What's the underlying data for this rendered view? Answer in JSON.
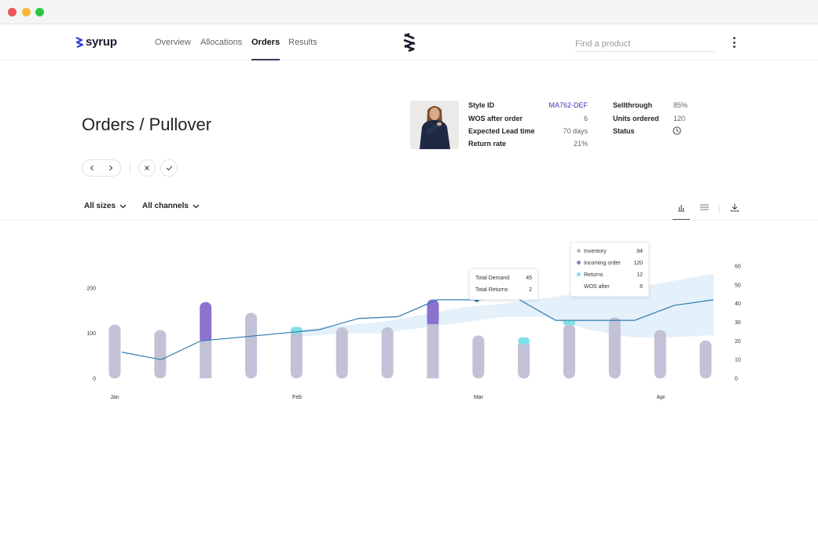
{
  "app": {
    "brand": "syrup",
    "nav": [
      {
        "label": "Overview",
        "active": false
      },
      {
        "label": "Allocations",
        "active": false
      },
      {
        "label": "Orders",
        "active": true
      },
      {
        "label": "Results",
        "active": false
      }
    ],
    "search_placeholder": "Find a product"
  },
  "page": {
    "title": "Orders / Pullover"
  },
  "product": {
    "left": [
      {
        "label": "Style ID",
        "value": "MA762-DEF"
      },
      {
        "label": "WOS after order",
        "value": "6"
      },
      {
        "label": "Expected Lead time",
        "value": "70 days"
      },
      {
        "label": "Return rate",
        "value": "21%"
      }
    ],
    "right": [
      {
        "label": "Sellthrough",
        "value": "85%"
      },
      {
        "label": "Units ordered",
        "value": "120"
      },
      {
        "label": "Status",
        "value": ""
      }
    ]
  },
  "filters": {
    "sizes": "All sizes",
    "channels": "All channels"
  },
  "colors": {
    "bar_base": "#c3c1d6",
    "bar_dark": "#8d8aa6",
    "incoming": "#8b72cf",
    "incoming_strong": "#4b34c4",
    "returns": "#7ee2e6",
    "line": "#2f7bb0",
    "band": "#e1eefa"
  },
  "chart_data": {
    "type": "bar",
    "left_ticks": [
      "200",
      "100",
      "0"
    ],
    "right_ticks": [
      "60",
      "50",
      "40",
      "30",
      "20",
      "10",
      "0"
    ],
    "x_labels": [
      "Jan",
      "Feb",
      "Mar",
      "Apr"
    ],
    "left_ylim": [
      0,
      200
    ],
    "right_ylim": [
      0,
      60
    ],
    "inventory": [
      119,
      107,
      84,
      145,
      107,
      113,
      113,
      120,
      95,
      84,
      120,
      135,
      107,
      84
    ],
    "incoming": [
      0,
      0,
      85,
      0,
      0,
      0,
      0,
      55,
      0,
      0,
      0,
      0,
      0,
      0
    ],
    "returns": [
      0,
      0,
      0,
      0,
      12,
      0,
      0,
      0,
      0,
      12,
      0,
      0,
      0,
      0
    ],
    "wos": [
      14,
      10,
      20,
      22,
      24,
      26,
      32,
      33,
      42,
      42,
      43,
      31,
      31,
      31,
      39,
      42
    ],
    "band_upper": [
      26,
      28,
      30,
      34,
      38,
      40,
      43,
      46,
      48,
      52,
      56
    ],
    "band_lower": [
      22,
      24,
      24,
      27,
      30,
      33,
      33,
      26,
      22,
      22,
      23
    ],
    "tooltips": [
      {
        "rows": [
          {
            "label": "Total Demand",
            "value": "45"
          },
          {
            "label": "Total Returns",
            "value": "2"
          }
        ]
      },
      {
        "rows": [
          {
            "label": "Inventory",
            "value": "84",
            "color": "#b9b7c9"
          },
          {
            "label": "Incoming order",
            "value": "120",
            "color": "#8a87a8"
          },
          {
            "label": "Returns",
            "value": "12",
            "color": "#7ee2e6"
          },
          {
            "label": "WOS after",
            "value": "6",
            "color": ""
          }
        ]
      }
    ]
  }
}
